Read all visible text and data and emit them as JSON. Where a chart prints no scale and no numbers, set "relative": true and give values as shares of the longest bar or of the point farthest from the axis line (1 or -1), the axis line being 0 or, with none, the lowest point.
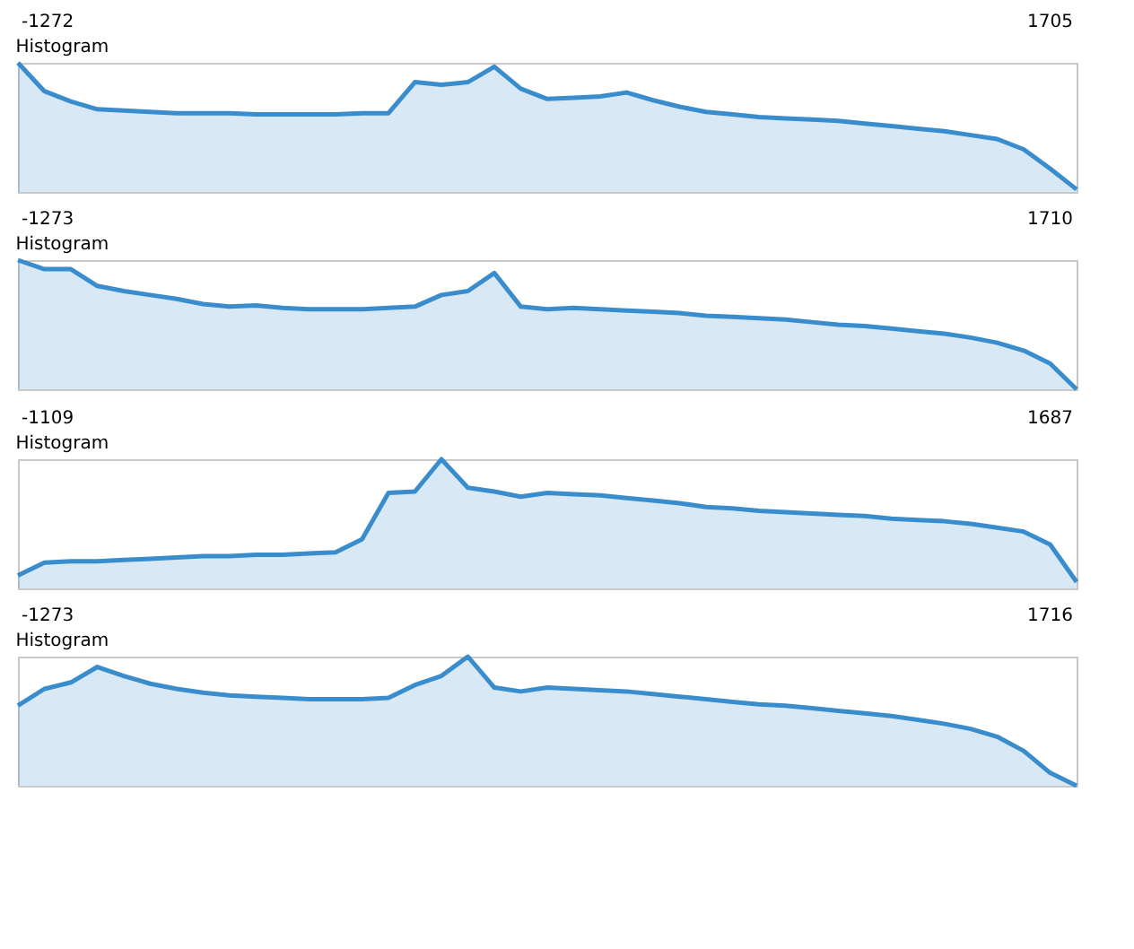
{
  "chart_data": [
    {
      "type": "area",
      "title": "Histogram",
      "annotations": [
        "-1272",
        "1705"
      ],
      "relative": true,
      "categories": [
        null,
        null,
        null,
        null,
        null,
        null,
        null,
        null,
        null,
        null,
        null,
        null,
        null,
        null,
        null,
        null,
        null,
        null,
        null,
        null,
        null,
        null,
        null,
        null,
        null,
        null,
        null,
        null,
        null,
        null,
        null,
        null,
        null,
        null,
        null,
        null,
        null,
        null,
        null,
        null,
        null
      ],
      "series": [
        {
          "color": "#3a8dcc",
          "values": [
            1.0,
            0.78,
            0.7,
            0.64,
            0.63,
            0.62,
            0.61,
            0.61,
            0.61,
            0.6,
            0.6,
            0.6,
            0.6,
            0.61,
            0.61,
            0.85,
            0.83,
            0.85,
            0.97,
            0.8,
            0.72,
            0.73,
            0.74,
            0.77,
            0.71,
            0.66,
            0.62,
            0.6,
            0.58,
            0.57,
            0.56,
            0.55,
            0.53,
            0.51,
            0.49,
            0.47,
            0.44,
            0.41,
            0.33,
            0.18,
            0.02
          ]
        }
      ]
    },
    {
      "type": "area",
      "title": "Histogram",
      "annotations": [
        "-1273",
        "1710"
      ],
      "relative": true,
      "categories": [
        null,
        null,
        null,
        null,
        null,
        null,
        null,
        null,
        null,
        null,
        null,
        null,
        null,
        null,
        null,
        null,
        null,
        null,
        null,
        null,
        null,
        null,
        null,
        null,
        null,
        null,
        null,
        null,
        null,
        null,
        null,
        null,
        null,
        null,
        null,
        null,
        null,
        null,
        null,
        null,
        null
      ],
      "series": [
        {
          "color": "#3a8dcc",
          "values": [
            1.0,
            0.93,
            0.93,
            0.8,
            0.76,
            0.73,
            0.7,
            0.66,
            0.64,
            0.65,
            0.63,
            0.62,
            0.62,
            0.62,
            0.63,
            0.64,
            0.73,
            0.76,
            0.9,
            0.64,
            0.62,
            0.63,
            0.62,
            0.61,
            0.6,
            0.59,
            0.57,
            0.56,
            0.55,
            0.54,
            0.52,
            0.5,
            0.49,
            0.47,
            0.45,
            0.43,
            0.4,
            0.36,
            0.3,
            0.2,
            0.0
          ]
        }
      ]
    },
    {
      "type": "area",
      "title": "Histogram",
      "annotations": [
        "-1109",
        "1687"
      ],
      "relative": true,
      "categories": [
        null,
        null,
        null,
        null,
        null,
        null,
        null,
        null,
        null,
        null,
        null,
        null,
        null,
        null,
        null,
        null,
        null,
        null,
        null,
        null,
        null,
        null,
        null,
        null,
        null,
        null,
        null,
        null,
        null,
        null,
        null,
        null,
        null,
        null,
        null,
        null,
        null,
        null,
        null,
        null,
        null
      ],
      "series": [
        {
          "color": "#3a8dcc",
          "values": [
            0.1,
            0.2,
            0.21,
            0.21,
            0.22,
            0.23,
            0.24,
            0.25,
            0.25,
            0.26,
            0.26,
            0.27,
            0.28,
            0.38,
            0.74,
            0.75,
            1.0,
            0.78,
            0.75,
            0.71,
            0.74,
            0.73,
            0.72,
            0.7,
            0.68,
            0.66,
            0.63,
            0.62,
            0.6,
            0.59,
            0.58,
            0.57,
            0.56,
            0.54,
            0.53,
            0.52,
            0.5,
            0.47,
            0.44,
            0.34,
            0.05
          ]
        }
      ]
    },
    {
      "type": "area",
      "title": "Histogram",
      "annotations": [
        "-1273",
        "1716"
      ],
      "relative": true,
      "categories": [
        null,
        null,
        null,
        null,
        null,
        null,
        null,
        null,
        null,
        null,
        null,
        null,
        null,
        null,
        null,
        null,
        null,
        null,
        null,
        null,
        null,
        null,
        null,
        null,
        null,
        null,
        null,
        null,
        null,
        null,
        null,
        null,
        null,
        null,
        null,
        null,
        null,
        null,
        null,
        null,
        null
      ],
      "series": [
        {
          "color": "#3a8dcc",
          "values": [
            0.62,
            0.75,
            0.8,
            0.92,
            0.85,
            0.79,
            0.75,
            0.72,
            0.7,
            0.69,
            0.68,
            0.67,
            0.67,
            0.67,
            0.68,
            0.78,
            0.85,
            1.0,
            0.76,
            0.73,
            0.76,
            0.75,
            0.74,
            0.73,
            0.71,
            0.69,
            0.67,
            0.65,
            0.63,
            0.62,
            0.6,
            0.58,
            0.56,
            0.54,
            0.51,
            0.48,
            0.44,
            0.38,
            0.27,
            0.1,
            0.0
          ]
        }
      ]
    }
  ]
}
